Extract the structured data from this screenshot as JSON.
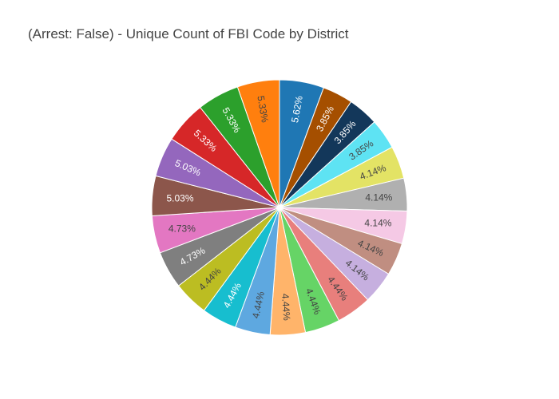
{
  "chart_data": {
    "type": "pie",
    "title": "(Arrest: False) - Unique Count of FBI Code by District",
    "direction": "clockwise",
    "start": "12 o'clock",
    "slices": [
      {
        "label": "5.62%",
        "value": 5.62,
        "color": "#1f77b4"
      },
      {
        "label": "3.85%",
        "value": 3.85,
        "color": "#a54f00"
      },
      {
        "label": "3.85%",
        "value": 3.85,
        "color": "#13375a"
      },
      {
        "label": "3.85%",
        "value": 3.85,
        "color": "#5ee3f3"
      },
      {
        "label": "4.14%",
        "value": 4.14,
        "color": "#e3e365"
      },
      {
        "label": "4.14%",
        "value": 4.14,
        "color": "#b0b0b0"
      },
      {
        "label": "4.14%",
        "value": 4.14,
        "color": "#f5c9e5"
      },
      {
        "label": "4.14%",
        "value": 4.14,
        "color": "#c08e81"
      },
      {
        "label": "4.14%",
        "value": 4.14,
        "color": "#c6afdf"
      },
      {
        "label": "4.44%",
        "value": 4.44,
        "color": "#e87f7c"
      },
      {
        "label": "4.44%",
        "value": 4.44,
        "color": "#66d466"
      },
      {
        "label": "4.44%",
        "value": 4.44,
        "color": "#ffb46a"
      },
      {
        "label": "4.44%",
        "value": 4.44,
        "color": "#5ea8e0"
      },
      {
        "label": "4.44%",
        "value": 4.44,
        "color": "#17becf"
      },
      {
        "label": "4.44%",
        "value": 4.44,
        "color": "#bcbd22"
      },
      {
        "label": "4.73%",
        "value": 4.73,
        "color": "#7f7f7f"
      },
      {
        "label": "4.73%",
        "value": 4.73,
        "color": "#e377c2"
      },
      {
        "label": "5.03%",
        "value": 5.03,
        "color": "#8c564b"
      },
      {
        "label": "5.03%",
        "value": 5.03,
        "color": "#9467bd"
      },
      {
        "label": "5.33%",
        "value": 5.33,
        "color": "#d62728"
      },
      {
        "label": "5.33%",
        "value": 5.33,
        "color": "#2ca02c"
      },
      {
        "label": "5.33%",
        "value": 5.33,
        "color": "#ff7f0e"
      }
    ]
  }
}
